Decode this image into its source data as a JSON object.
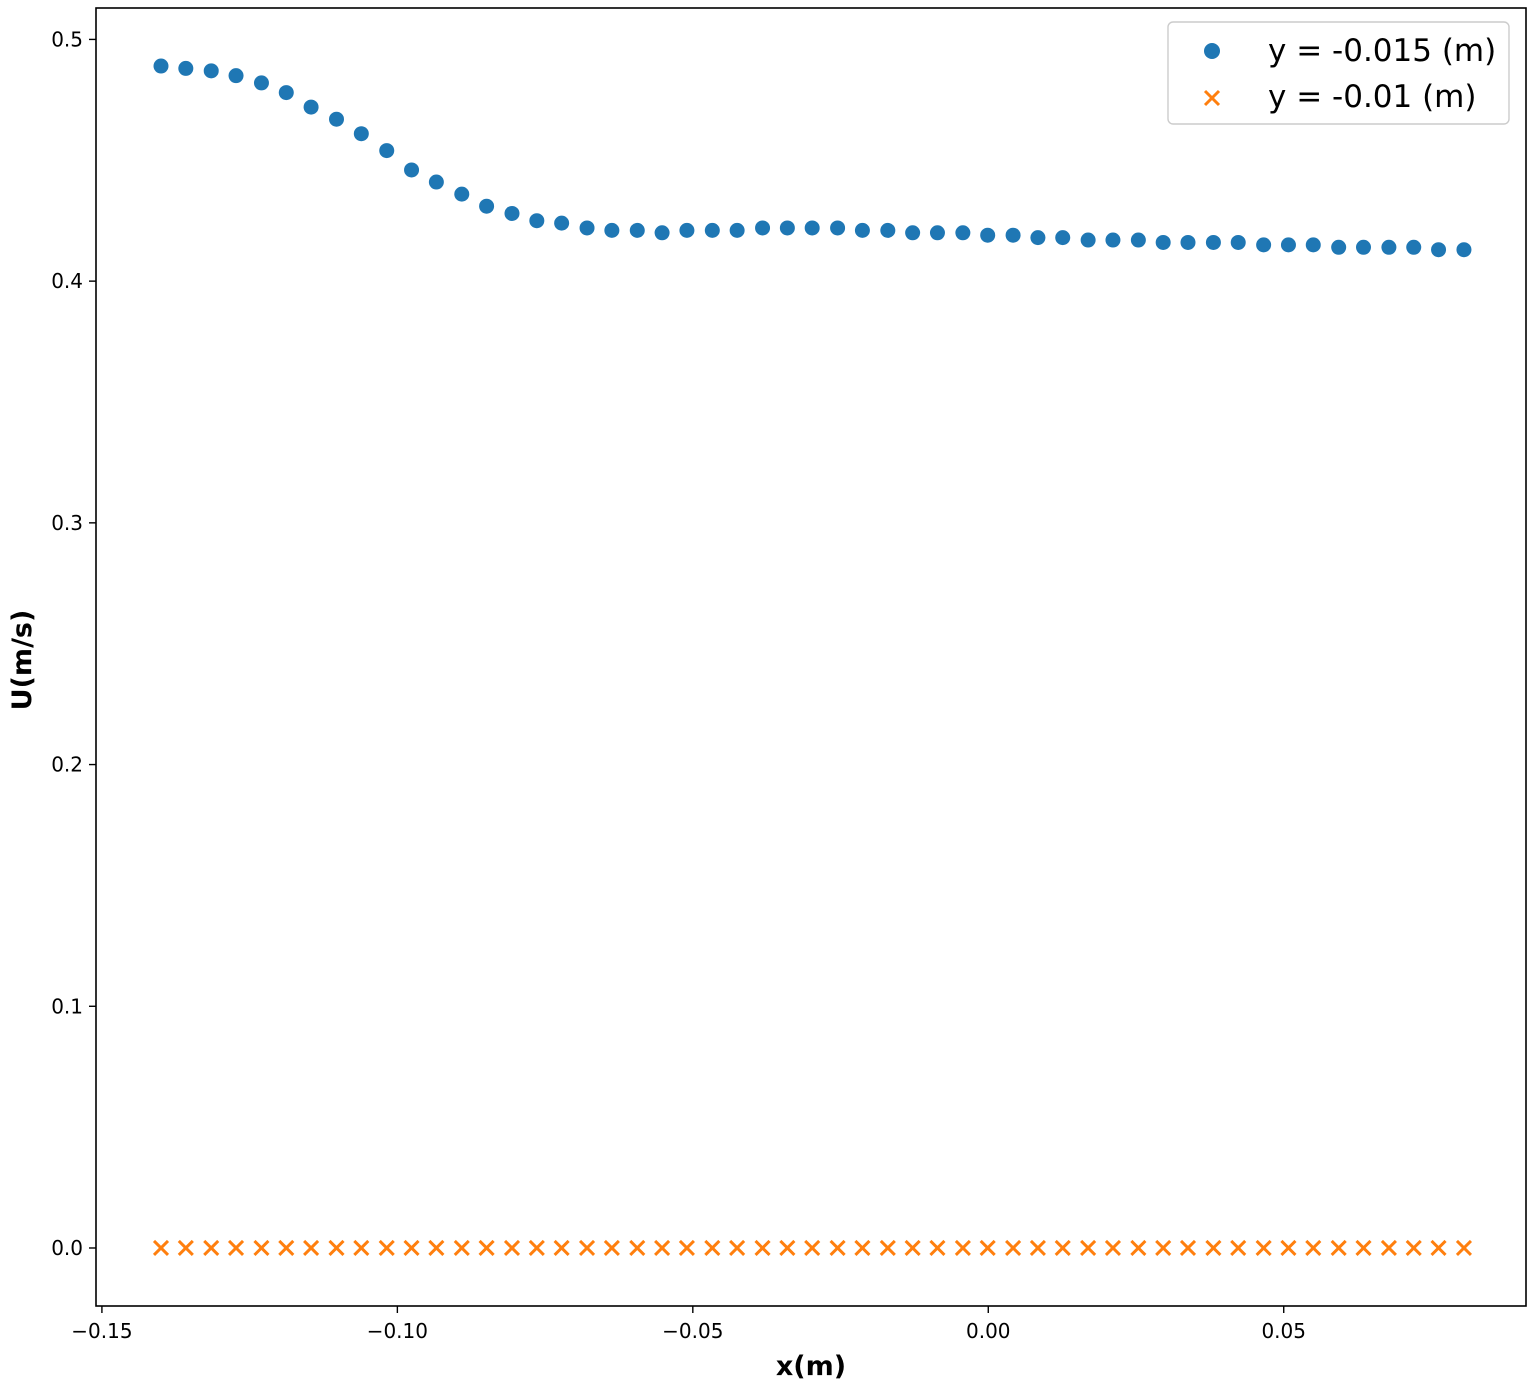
{
  "chart_data": {
    "type": "scatter",
    "title": "",
    "xlabel": "x(m)",
    "ylabel": "U(m/s)",
    "xlim": [
      -0.151,
      0.091
    ],
    "ylim": [
      -0.024,
      0.513
    ],
    "xticks": [
      -0.15,
      -0.1,
      -0.05,
      0.0,
      0.05
    ],
    "xtick_labels": [
      "−0.15",
      "−0.10",
      "−0.05",
      "0.00",
      "0.05"
    ],
    "yticks": [
      0.0,
      0.1,
      0.2,
      0.3,
      0.4,
      0.5
    ],
    "ytick_labels": [
      "0.0",
      "0.1",
      "0.2",
      "0.3",
      "0.4",
      "0.5"
    ],
    "grid": false,
    "legend_position": "top-right",
    "series": [
      {
        "name": "y = -0.015 (m)",
        "marker": "circle",
        "color": "#1f77b4",
        "x": [
          -0.14,
          -0.1358,
          -0.1315,
          -0.1273,
          -0.123,
          -0.1188,
          -0.1146,
          -0.1103,
          -0.1061,
          -0.1018,
          -0.0976,
          -0.0934,
          -0.0891,
          -0.0849,
          -0.0806,
          -0.0764,
          -0.0722,
          -0.0679,
          -0.0637,
          -0.0594,
          -0.0552,
          -0.051,
          -0.0467,
          -0.0425,
          -0.0382,
          -0.034,
          -0.0298,
          -0.0255,
          -0.0213,
          -0.017,
          -0.0128,
          -0.0086,
          -0.0043,
          -0.0001,
          0.0042,
          0.0084,
          0.0126,
          0.0169,
          0.0211,
          0.0254,
          0.0296,
          0.0338,
          0.0381,
          0.0423,
          0.0466,
          0.0508,
          0.055,
          0.0593,
          0.0635,
          0.0678,
          0.072,
          0.0762,
          0.0805
        ],
        "y": [
          0.489,
          0.488,
          0.487,
          0.485,
          0.482,
          0.478,
          0.472,
          0.467,
          0.461,
          0.454,
          0.446,
          0.441,
          0.436,
          0.431,
          0.428,
          0.425,
          0.424,
          0.422,
          0.421,
          0.421,
          0.42,
          0.421,
          0.421,
          0.421,
          0.422,
          0.422,
          0.422,
          0.422,
          0.421,
          0.421,
          0.42,
          0.42,
          0.42,
          0.419,
          0.419,
          0.418,
          0.418,
          0.417,
          0.417,
          0.417,
          0.416,
          0.416,
          0.416,
          0.416,
          0.415,
          0.415,
          0.415,
          0.414,
          0.414,
          0.414,
          0.414,
          0.413,
          0.413
        ]
      },
      {
        "name": "y = -0.01 (m)",
        "marker": "x",
        "color": "#ff7f0e",
        "x": [
          -0.14,
          -0.1358,
          -0.1315,
          -0.1273,
          -0.123,
          -0.1188,
          -0.1146,
          -0.1103,
          -0.1061,
          -0.1018,
          -0.0976,
          -0.0934,
          -0.0891,
          -0.0849,
          -0.0806,
          -0.0764,
          -0.0722,
          -0.0679,
          -0.0637,
          -0.0594,
          -0.0552,
          -0.051,
          -0.0467,
          -0.0425,
          -0.0382,
          -0.034,
          -0.0298,
          -0.0255,
          -0.0213,
          -0.017,
          -0.0128,
          -0.0086,
          -0.0043,
          -0.0001,
          0.0042,
          0.0084,
          0.0126,
          0.0169,
          0.0211,
          0.0254,
          0.0296,
          0.0338,
          0.0381,
          0.0423,
          0.0466,
          0.0508,
          0.055,
          0.0593,
          0.0635,
          0.0678,
          0.072,
          0.0762,
          0.0805
        ],
        "y": [
          0,
          0,
          0,
          0,
          0,
          0,
          0,
          0,
          0,
          0,
          0,
          0,
          0,
          0,
          0,
          0,
          0,
          0,
          0,
          0,
          0,
          0,
          0,
          0,
          0,
          0,
          0,
          0,
          0,
          0,
          0,
          0,
          0,
          0,
          0,
          0,
          0,
          0,
          0,
          0,
          0,
          0,
          0,
          0,
          0,
          0,
          0,
          0,
          0,
          0,
          0,
          0,
          0
        ]
      }
    ]
  }
}
